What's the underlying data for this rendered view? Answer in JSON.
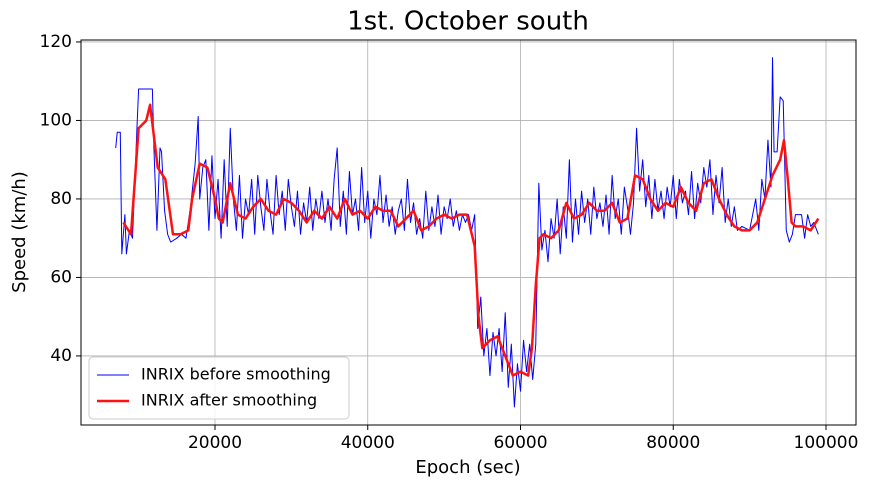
{
  "chart_data": {
    "type": "line",
    "title": "1st. October south",
    "x_label": "Epoch (sec)",
    "y_label": "Speed (km/h)",
    "xlim": [
      2455,
      103930
    ],
    "ylim": [
      22.4,
      120.5
    ],
    "xticks": [
      20000,
      40000,
      60000,
      80000,
      100000
    ],
    "yticks": [
      40,
      60,
      80,
      100,
      120
    ],
    "grid": true,
    "legend": "lower left",
    "series": [
      {
        "name": "INRIX before smoothing",
        "color": "#0000ff",
        "line_width": 1,
        "x": [
          7000,
          7200,
          7600,
          7800,
          8200,
          8400,
          8800,
          9200,
          9800,
          10000,
          11800,
          12000,
          12400,
          12800,
          13000,
          13400,
          13800,
          14200,
          15000,
          15600,
          16200,
          16800,
          17400,
          17800,
          18000,
          18400,
          18800,
          19200,
          19600,
          20000,
          20400,
          20800,
          21200,
          21600,
          22000,
          22400,
          22800,
          23200,
          23600,
          24000,
          24400,
          24800,
          25200,
          25600,
          26000,
          26400,
          26800,
          27200,
          27600,
          28000,
          28400,
          28800,
          29200,
          29600,
          30000,
          30400,
          30800,
          31200,
          31600,
          32000,
          32400,
          32800,
          33200,
          33600,
          34000,
          34400,
          34800,
          35200,
          35600,
          36000,
          36400,
          36800,
          37200,
          37600,
          38000,
          38400,
          38800,
          39200,
          39600,
          40000,
          40400,
          40800,
          41200,
          41600,
          42000,
          42400,
          42800,
          43200,
          43600,
          44000,
          44400,
          44800,
          45200,
          45600,
          46000,
          46400,
          46800,
          47200,
          47600,
          48000,
          48400,
          48800,
          49200,
          49600,
          50000,
          50400,
          50800,
          51200,
          51600,
          52000,
          52400,
          52800,
          53200,
          53600,
          54000,
          54400,
          54800,
          55200,
          55600,
          56000,
          56400,
          56800,
          57200,
          57600,
          58000,
          58400,
          58800,
          59200,
          59600,
          60000,
          60400,
          60800,
          61200,
          61600,
          62000,
          62400,
          62800,
          63200,
          63600,
          64000,
          64400,
          64800,
          65200,
          65600,
          66000,
          66400,
          66800,
          67200,
          67600,
          68000,
          68400,
          68800,
          69200,
          69600,
          70000,
          70400,
          70800,
          71200,
          71600,
          72000,
          72400,
          72800,
          73200,
          73600,
          74000,
          74400,
          74800,
          75200,
          75600,
          76000,
          76400,
          76800,
          77200,
          77600,
          78000,
          78400,
          78800,
          79200,
          79600,
          80000,
          80400,
          80800,
          81200,
          81600,
          82000,
          82400,
          82800,
          83200,
          83600,
          84000,
          84400,
          84800,
          85200,
          85600,
          86000,
          86400,
          86800,
          87200,
          87600,
          88000,
          88400,
          89000,
          90000,
          90800,
          91200,
          91600,
          92000,
          92400,
          92800,
          93000,
          93200,
          93600,
          94000,
          94400,
          94800,
          95200,
          95600,
          96000,
          96800,
          97200,
          97600,
          98000,
          98400,
          99000
        ],
        "values": [
          93,
          97,
          97,
          66,
          76,
          66,
          72,
          70,
          99,
          108,
          108,
          93,
          72,
          93,
          92,
          77,
          71,
          69,
          70,
          71,
          70,
          78,
          89,
          101,
          80,
          88,
          90,
          72,
          91,
          75,
          85,
          70,
          90,
          73,
          98,
          80,
          72,
          86,
          70,
          80,
          76,
          85,
          71,
          86,
          78,
          72,
          85,
          77,
          71,
          86,
          76,
          82,
          72,
          85,
          78,
          73,
          82,
          71,
          79,
          74,
          83,
          72,
          80,
          75,
          82,
          74,
          80,
          72,
          85,
          93,
          73,
          82,
          71,
          87,
          76,
          80,
          72,
          88,
          74,
          82,
          70,
          80,
          76,
          86,
          74,
          81,
          73,
          78,
          71,
          77,
          80,
          72,
          85,
          74,
          79,
          71,
          75,
          70,
          82,
          72,
          78,
          73,
          81,
          71,
          78,
          75,
          80,
          73,
          77,
          72,
          76,
          74,
          76,
          72,
          76,
          47,
          55,
          40,
          47,
          35,
          46,
          40,
          47,
          36,
          51,
          32,
          43,
          27,
          38,
          31,
          44,
          36,
          43,
          34,
          43,
          84,
          67,
          72,
          64,
          75,
          70,
          80,
          66,
          78,
          70,
          90,
          69,
          80,
          71,
          82,
          74,
          80,
          71,
          83,
          75,
          79,
          73,
          81,
          71,
          86,
          75,
          80,
          71,
          83,
          78,
          71,
          79,
          98,
          82,
          90,
          78,
          86,
          75,
          85,
          77,
          82,
          75,
          83,
          78,
          86,
          75,
          85,
          79,
          82,
          76,
          87,
          75,
          84,
          79,
          88,
          83,
          90,
          76,
          86,
          79,
          88,
          74,
          80,
          73,
          78,
          72,
          73,
          72,
          80,
          72,
          85,
          80,
          95,
          83,
          116,
          92,
          92,
          106,
          105,
          72,
          69,
          71,
          76,
          76,
          70,
          76,
          73,
          74,
          71
        ]
      },
      {
        "name": "INRIX after smoothing",
        "color": "#ff1111",
        "line_width": 2.5,
        "x": [
          8000,
          9000,
          10000,
          11000,
          11500,
          12000,
          12500,
          13500,
          14500,
          15500,
          16500,
          17000,
          18000,
          19000,
          20000,
          20500,
          21000,
          22000,
          23000,
          24000,
          25000,
          26000,
          27000,
          28000,
          29000,
          30000,
          31000,
          32000,
          33000,
          34000,
          35000,
          36000,
          37000,
          38000,
          39000,
          40000,
          41000,
          42000,
          43000,
          44000,
          45000,
          46000,
          47000,
          48000,
          49000,
          50000,
          51000,
          52000,
          53000,
          54000,
          54500,
          55000,
          56000,
          57000,
          58000,
          59000,
          60000,
          61000,
          61500,
          62000,
          62500,
          63000,
          64000,
          65000,
          66000,
          67000,
          68000,
          69000,
          70000,
          71000,
          72000,
          73000,
          74000,
          75000,
          76000,
          77000,
          78000,
          79000,
          80000,
          81000,
          82000,
          83000,
          84000,
          85000,
          86000,
          87000,
          88000,
          89000,
          90000,
          91000,
          92000,
          93000,
          94000,
          94500,
          95000,
          95500,
          96000,
          97000,
          98000,
          99000
        ],
        "values": [
          74,
          71,
          98,
          100,
          104,
          96,
          88,
          85,
          71,
          71,
          72,
          80,
          89,
          88,
          80,
          75,
          74,
          84,
          76,
          75,
          78,
          80,
          77,
          76,
          80,
          79,
          77,
          74,
          77,
          75,
          78,
          75,
          80,
          76,
          77,
          75,
          78,
          77,
          77,
          73,
          75,
          77,
          72,
          73,
          75,
          76,
          75,
          76,
          76,
          68,
          50,
          42,
          44,
          45,
          40,
          35,
          36,
          35,
          42,
          58,
          70,
          71,
          70,
          72,
          79,
          75,
          76,
          79,
          77,
          77,
          79,
          74,
          75,
          86,
          85,
          80,
          77,
          79,
          78,
          83,
          79,
          77,
          84,
          85,
          80,
          76,
          73,
          72,
          72,
          74,
          80,
          86,
          90,
          95,
          85,
          74,
          73,
          73,
          72,
          75
        ]
      }
    ]
  }
}
